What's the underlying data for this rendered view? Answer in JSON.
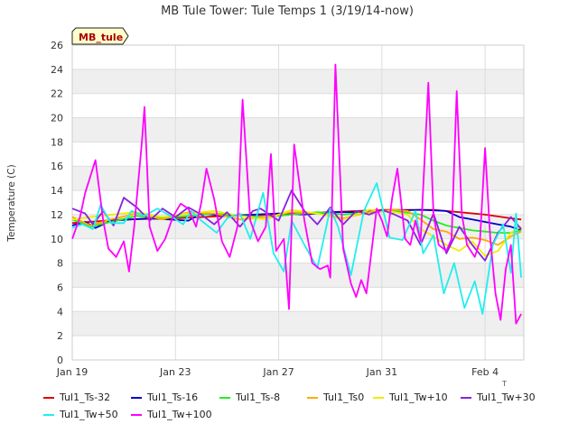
{
  "chart_data": {
    "type": "line",
    "title": "MB Tule Tower: Tule Temps 1 (3/19/14-now)",
    "ylabel": "Temperature (C)",
    "xlabel": "",
    "xlim": [
      0,
      17.5
    ],
    "ylim": [
      0,
      26
    ],
    "yticks": [
      0,
      2,
      4,
      6,
      8,
      10,
      12,
      14,
      16,
      18,
      20,
      22,
      24,
      26
    ],
    "xticks": [
      {
        "value": 0,
        "label": "Jan 19"
      },
      {
        "value": 4,
        "label": "Jan 23"
      },
      {
        "value": 8,
        "label": "Jan 27"
      },
      {
        "value": 12,
        "label": "Jan 31"
      },
      {
        "value": 16,
        "label": "Feb 4"
      }
    ],
    "x_overflow_label": "T",
    "annotation": "MB_tule",
    "series": [
      {
        "name": "Tul1_Ts-32",
        "color": "#dd0000",
        "points": [
          [
            0,
            11.3
          ],
          [
            2,
            11.6
          ],
          [
            4,
            11.7
          ],
          [
            6,
            11.9
          ],
          [
            8,
            12.0
          ],
          [
            10,
            12.2
          ],
          [
            12,
            12.4
          ],
          [
            14,
            12.4
          ],
          [
            15,
            12.2
          ],
          [
            16,
            12.0
          ],
          [
            17,
            11.7
          ],
          [
            17.4,
            11.6
          ]
        ]
      },
      {
        "name": "Tul1_Ts-16",
        "color": "#0000cc",
        "points": [
          [
            0,
            11.1
          ],
          [
            0.5,
            11.4
          ],
          [
            0.9,
            10.9
          ],
          [
            1.5,
            11.5
          ],
          [
            3,
            11.7
          ],
          [
            4.5,
            11.5
          ],
          [
            5,
            12.1
          ],
          [
            6,
            11.9
          ],
          [
            7,
            12.0
          ],
          [
            8,
            12.1
          ],
          [
            9,
            12.0
          ],
          [
            10,
            12.2
          ],
          [
            11,
            12.2
          ],
          [
            12,
            12.3
          ],
          [
            13.5,
            12.4
          ],
          [
            14.5,
            12.3
          ],
          [
            15,
            11.8
          ],
          [
            15.5,
            11.6
          ],
          [
            16,
            11.4
          ],
          [
            16.5,
            11.2
          ],
          [
            17,
            11.0
          ],
          [
            17.4,
            10.7
          ]
        ]
      },
      {
        "name": "Tul1_Ts-8",
        "color": "#22ee22",
        "points": [
          [
            0,
            11.6
          ],
          [
            0.7,
            11.0
          ],
          [
            1.5,
            11.4
          ],
          [
            2.5,
            11.9
          ],
          [
            3.5,
            11.7
          ],
          [
            4.5,
            11.9
          ],
          [
            5.5,
            12.1
          ],
          [
            6.5,
            11.9
          ],
          [
            7.5,
            11.8
          ],
          [
            8.5,
            12.0
          ],
          [
            9.5,
            12.2
          ],
          [
            10.5,
            12.0
          ],
          [
            11.5,
            12.2
          ],
          [
            12.5,
            12.3
          ],
          [
            13.5,
            12.0
          ],
          [
            14,
            11.5
          ],
          [
            14.5,
            11.1
          ],
          [
            15,
            10.9
          ],
          [
            15.5,
            10.7
          ],
          [
            16,
            10.6
          ],
          [
            16.5,
            10.5
          ],
          [
            17,
            10.5
          ],
          [
            17.4,
            10.7
          ]
        ]
      },
      {
        "name": "Tul1_Ts0",
        "color": "#ffaa00",
        "points": [
          [
            0,
            11.8
          ],
          [
            0.7,
            11.1
          ],
          [
            1.5,
            11.6
          ],
          [
            2.5,
            12.1
          ],
          [
            3.5,
            11.6
          ],
          [
            4.5,
            12.2
          ],
          [
            5.5,
            12.1
          ],
          [
            6.5,
            11.6
          ],
          [
            7.5,
            11.8
          ],
          [
            8.5,
            12.2
          ],
          [
            9.5,
            12.1
          ],
          [
            10.5,
            11.7
          ],
          [
            11.5,
            12.2
          ],
          [
            12.5,
            12.4
          ],
          [
            13,
            12.3
          ],
          [
            13.5,
            11.6
          ],
          [
            14,
            10.8
          ],
          [
            14.5,
            10.6
          ],
          [
            15,
            10.0
          ],
          [
            15.5,
            10.1
          ],
          [
            16,
            9.9
          ],
          [
            16.5,
            9.5
          ],
          [
            17,
            10.2
          ],
          [
            17.4,
            10.6
          ]
        ]
      },
      {
        "name": "Tul1_Tw+10",
        "color": "#eeee00",
        "points": [
          [
            0,
            11.6
          ],
          [
            0.7,
            11.8
          ],
          [
            1.5,
            12.0
          ],
          [
            2.5,
            12.2
          ],
          [
            3.5,
            11.8
          ],
          [
            4.5,
            12.1
          ],
          [
            5.5,
            12.3
          ],
          [
            6.5,
            11.9
          ],
          [
            7.5,
            11.6
          ],
          [
            8.5,
            12.4
          ],
          [
            9.5,
            12.1
          ],
          [
            10.5,
            11.6
          ],
          [
            11.5,
            12.4
          ],
          [
            12.5,
            12.2
          ],
          [
            13,
            12.0
          ],
          [
            13.5,
            10.8
          ],
          [
            14,
            10.2
          ],
          [
            14.5,
            9.5
          ],
          [
            15,
            9.0
          ],
          [
            15.5,
            9.8
          ],
          [
            16,
            8.6
          ],
          [
            16.5,
            9.0
          ],
          [
            17,
            10.5
          ],
          [
            17.4,
            11.0
          ]
        ]
      },
      {
        "name": "Tul1_Tw+30",
        "color": "#8822dd",
        "points": [
          [
            0,
            12.5
          ],
          [
            0.5,
            12.1
          ],
          [
            0.8,
            11.2
          ],
          [
            1.2,
            12.3
          ],
          [
            1.6,
            11.1
          ],
          [
            2.0,
            13.4
          ],
          [
            2.5,
            12.6
          ],
          [
            3.0,
            11.5
          ],
          [
            3.5,
            12.5
          ],
          [
            4.0,
            11.8
          ],
          [
            4.5,
            12.6
          ],
          [
            5.0,
            12.0
          ],
          [
            5.5,
            11.2
          ],
          [
            6.0,
            12.2
          ],
          [
            6.5,
            11.0
          ],
          [
            7.0,
            12.3
          ],
          [
            7.3,
            12.5
          ],
          [
            8.0,
            11.5
          ],
          [
            8.5,
            14.0
          ],
          [
            9.0,
            12.3
          ],
          [
            9.5,
            11.2
          ],
          [
            10.0,
            12.6
          ],
          [
            10.5,
            11.2
          ],
          [
            11.0,
            12.3
          ],
          [
            11.5,
            12.0
          ],
          [
            12.0,
            12.4
          ],
          [
            12.5,
            12.0
          ],
          [
            13.0,
            11.5
          ],
          [
            13.5,
            9.5
          ],
          [
            14.0,
            12.1
          ],
          [
            14.5,
            8.8
          ],
          [
            15.0,
            11.0
          ],
          [
            15.5,
            9.5
          ],
          [
            16.0,
            8.2
          ],
          [
            16.5,
            10.5
          ],
          [
            17.0,
            11.8
          ],
          [
            17.4,
            10.8
          ]
        ]
      },
      {
        "name": "Tul1_Tw+50",
        "color": "#22eeee",
        "points": [
          [
            0,
            10.9
          ],
          [
            0.4,
            11.2
          ],
          [
            0.8,
            10.8
          ],
          [
            1.1,
            12.8
          ],
          [
            1.5,
            11.3
          ],
          [
            2.0,
            11.3
          ],
          [
            2.3,
            12.3
          ],
          [
            2.8,
            11.9
          ],
          [
            3.3,
            12.5
          ],
          [
            3.8,
            11.9
          ],
          [
            4.3,
            11.2
          ],
          [
            4.6,
            12.3
          ],
          [
            5.0,
            11.5
          ],
          [
            5.6,
            10.5
          ],
          [
            6.0,
            11.7
          ],
          [
            6.5,
            12.1
          ],
          [
            6.9,
            10.0
          ],
          [
            7.4,
            13.8
          ],
          [
            7.8,
            8.8
          ],
          [
            8.2,
            7.3
          ],
          [
            8.5,
            11.5
          ],
          [
            9.0,
            9.5
          ],
          [
            9.5,
            7.6
          ],
          [
            10.0,
            12.5
          ],
          [
            10.3,
            11.0
          ],
          [
            10.8,
            7.0
          ],
          [
            11.3,
            12.3
          ],
          [
            11.8,
            14.6
          ],
          [
            12.3,
            10.1
          ],
          [
            12.8,
            9.9
          ],
          [
            13.3,
            12.3
          ],
          [
            13.6,
            8.8
          ],
          [
            14.0,
            10.3
          ],
          [
            14.4,
            5.5
          ],
          [
            14.8,
            8.0
          ],
          [
            15.2,
            4.3
          ],
          [
            15.6,
            6.5
          ],
          [
            15.9,
            3.8
          ],
          [
            16.3,
            9.5
          ],
          [
            16.7,
            11.2
          ],
          [
            17.0,
            7.2
          ],
          [
            17.2,
            12.1
          ],
          [
            17.4,
            6.8
          ]
        ]
      },
      {
        "name": "Tul1_Tw+100",
        "color": "#ff00ff",
        "points": [
          [
            0,
            10.0
          ],
          [
            0.3,
            11.8
          ],
          [
            0.5,
            13.8
          ],
          [
            0.9,
            16.5
          ],
          [
            1.2,
            11.5
          ],
          [
            1.4,
            9.2
          ],
          [
            1.7,
            8.5
          ],
          [
            2.0,
            9.8
          ],
          [
            2.2,
            7.3
          ],
          [
            2.4,
            11.0
          ],
          [
            2.7,
            18.0
          ],
          [
            2.8,
            20.9
          ],
          [
            3.0,
            11.0
          ],
          [
            3.3,
            9.0
          ],
          [
            3.6,
            10.0
          ],
          [
            3.9,
            11.8
          ],
          [
            4.2,
            12.9
          ],
          [
            4.5,
            12.5
          ],
          [
            4.8,
            11.0
          ],
          [
            5.0,
            13.0
          ],
          [
            5.2,
            15.8
          ],
          [
            5.5,
            13.3
          ],
          [
            5.8,
            9.8
          ],
          [
            6.1,
            8.5
          ],
          [
            6.4,
            11.0
          ],
          [
            6.6,
            21.5
          ],
          [
            6.9,
            11.5
          ],
          [
            7.2,
            9.8
          ],
          [
            7.5,
            11.0
          ],
          [
            7.7,
            17.0
          ],
          [
            7.9,
            9.0
          ],
          [
            8.2,
            10.0
          ],
          [
            8.4,
            4.2
          ],
          [
            8.6,
            17.8
          ],
          [
            9.0,
            11.5
          ],
          [
            9.3,
            8.0
          ],
          [
            9.6,
            7.5
          ],
          [
            9.9,
            7.8
          ],
          [
            10.0,
            6.8
          ],
          [
            10.2,
            24.4
          ],
          [
            10.5,
            9.2
          ],
          [
            10.8,
            6.3
          ],
          [
            11.0,
            5.2
          ],
          [
            11.2,
            6.6
          ],
          [
            11.4,
            5.5
          ],
          [
            11.8,
            12.5
          ],
          [
            12.0,
            11.5
          ],
          [
            12.2,
            10.2
          ],
          [
            12.4,
            13.4
          ],
          [
            12.6,
            15.8
          ],
          [
            12.9,
            10.0
          ],
          [
            13.1,
            9.5
          ],
          [
            13.3,
            11.5
          ],
          [
            13.5,
            9.8
          ],
          [
            13.8,
            22.9
          ],
          [
            14.0,
            12.0
          ],
          [
            14.2,
            9.5
          ],
          [
            14.5,
            9.0
          ],
          [
            14.7,
            10.0
          ],
          [
            14.9,
            22.2
          ],
          [
            15.1,
            12.0
          ],
          [
            15.3,
            9.5
          ],
          [
            15.6,
            8.5
          ],
          [
            15.8,
            9.8
          ],
          [
            16.0,
            17.5
          ],
          [
            16.2,
            10.0
          ],
          [
            16.4,
            5.5
          ],
          [
            16.6,
            3.3
          ],
          [
            16.8,
            7.5
          ],
          [
            17.0,
            9.5
          ],
          [
            17.2,
            3.0
          ],
          [
            17.4,
            3.8
          ]
        ]
      }
    ]
  },
  "legend_layout": "bottom, 6 columns x 2 rows"
}
